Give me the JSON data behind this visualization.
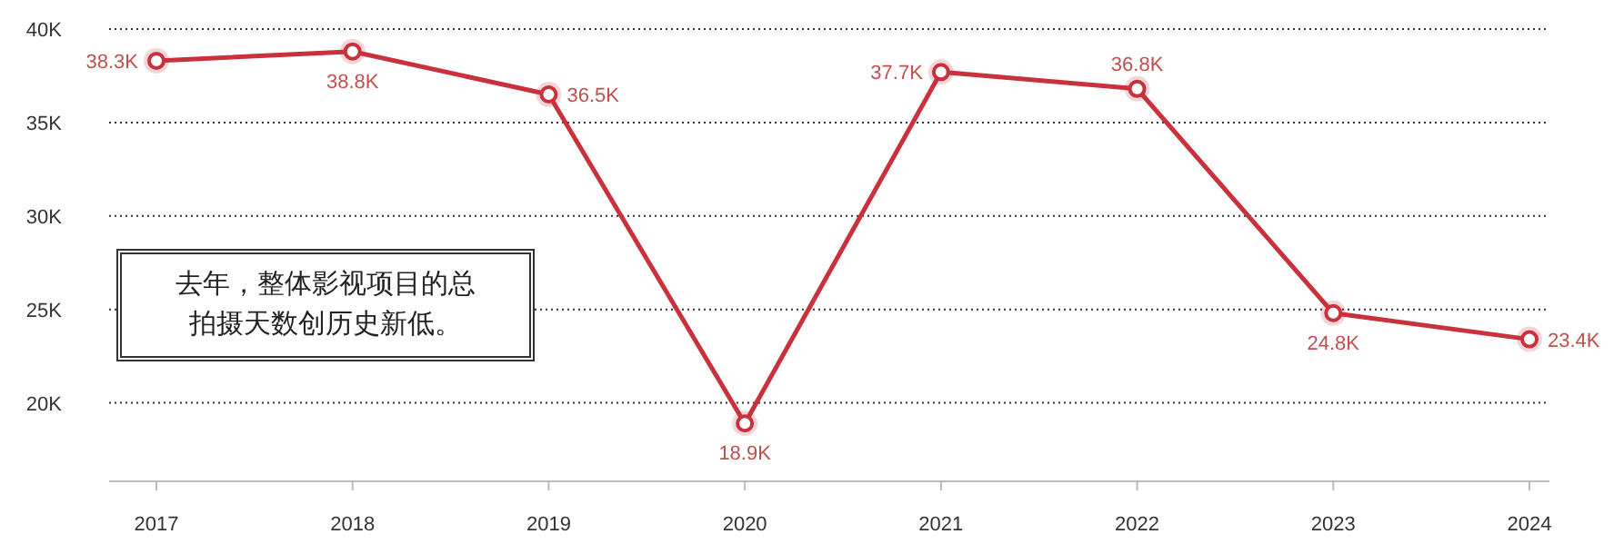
{
  "chart_data": {
    "type": "line",
    "categories": [
      "2017",
      "2018",
      "2019",
      "2020",
      "2021",
      "2022",
      "2023",
      "2024"
    ],
    "series": [
      {
        "color": "#c9323c",
        "values": [
          38.3,
          38.8,
          36.5,
          18.9,
          37.7,
          36.8,
          24.8,
          23.4
        ],
        "value_labels": [
          "38.3K",
          "38.8K",
          "36.5K",
          "18.9K",
          "37.7K",
          "36.8K",
          "24.8K",
          "23.4K"
        ]
      }
    ],
    "ylim": [
      15.8,
      40
    ],
    "yticks": [
      {
        "value": 20,
        "label": "20K"
      },
      {
        "value": 25,
        "label": "25K"
      },
      {
        "value": 30,
        "label": "30K"
      },
      {
        "value": 35,
        "label": "35K"
      },
      {
        "value": 40,
        "label": "40K"
      }
    ],
    "grid": "y",
    "marker": "circle",
    "line_style": "solid",
    "annotations": [
      "去年，整体影视项目的总拍摄天数创历史新低。"
    ]
  }
}
